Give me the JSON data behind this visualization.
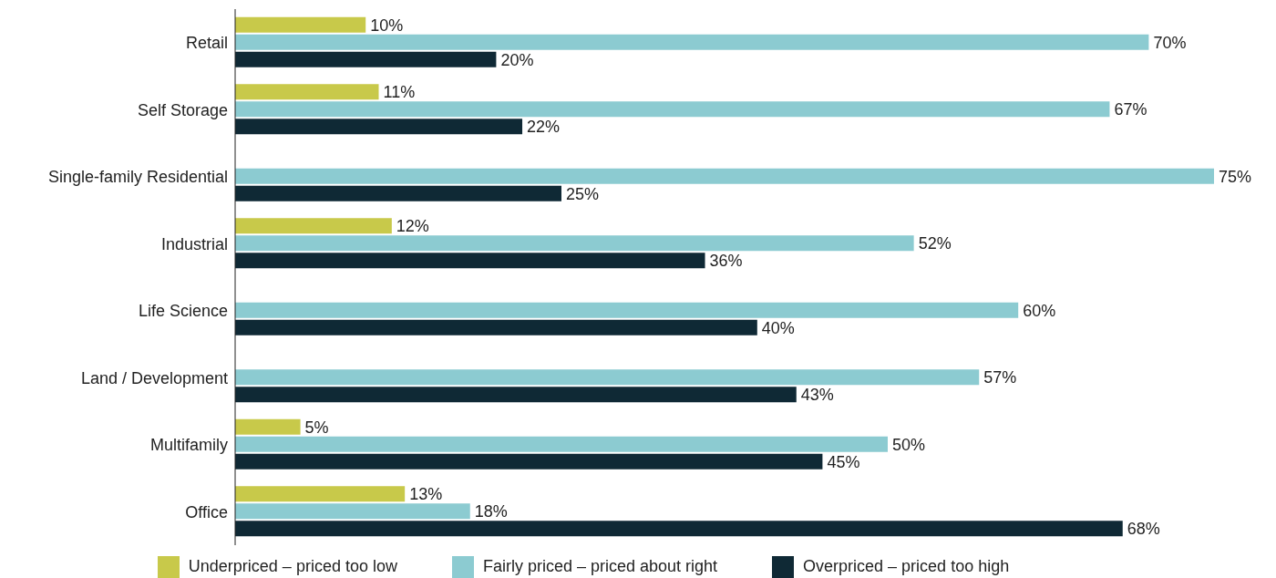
{
  "chart_data": {
    "type": "bar",
    "orientation": "horizontal",
    "categories": [
      "Retail",
      "Self Storage",
      "Single-family Residential",
      "Industrial",
      "Life Science",
      "Land / Development",
      "Multifamily",
      "Office"
    ],
    "series": [
      {
        "name": "Underpriced – priced too low",
        "color": "#c8c94a",
        "values": [
          10,
          11,
          null,
          12,
          null,
          null,
          5,
          13
        ],
        "value_labels": [
          "10%",
          "11%",
          null,
          "12%",
          null,
          null,
          "5%",
          "13%"
        ]
      },
      {
        "name": "Fairly priced – priced about right",
        "color": "#8ccbd1",
        "values": [
          70,
          67,
          75,
          52,
          60,
          57,
          50,
          18
        ],
        "value_labels": [
          "70%",
          "67%",
          "75%",
          "52%",
          "60%",
          "57%",
          "50%",
          "18%"
        ]
      },
      {
        "name": "Overpriced – priced too high",
        "color": "#0f2935",
        "values": [
          20,
          22,
          25,
          36,
          40,
          43,
          45,
          68
        ],
        "value_labels": [
          "20%",
          "22%",
          "25%",
          "36%",
          "40%",
          "43%",
          "45%",
          "68%"
        ]
      }
    ],
    "xlim": [
      0,
      75
    ],
    "tick_labels": "y",
    "grid": false,
    "legend": "bottom"
  }
}
